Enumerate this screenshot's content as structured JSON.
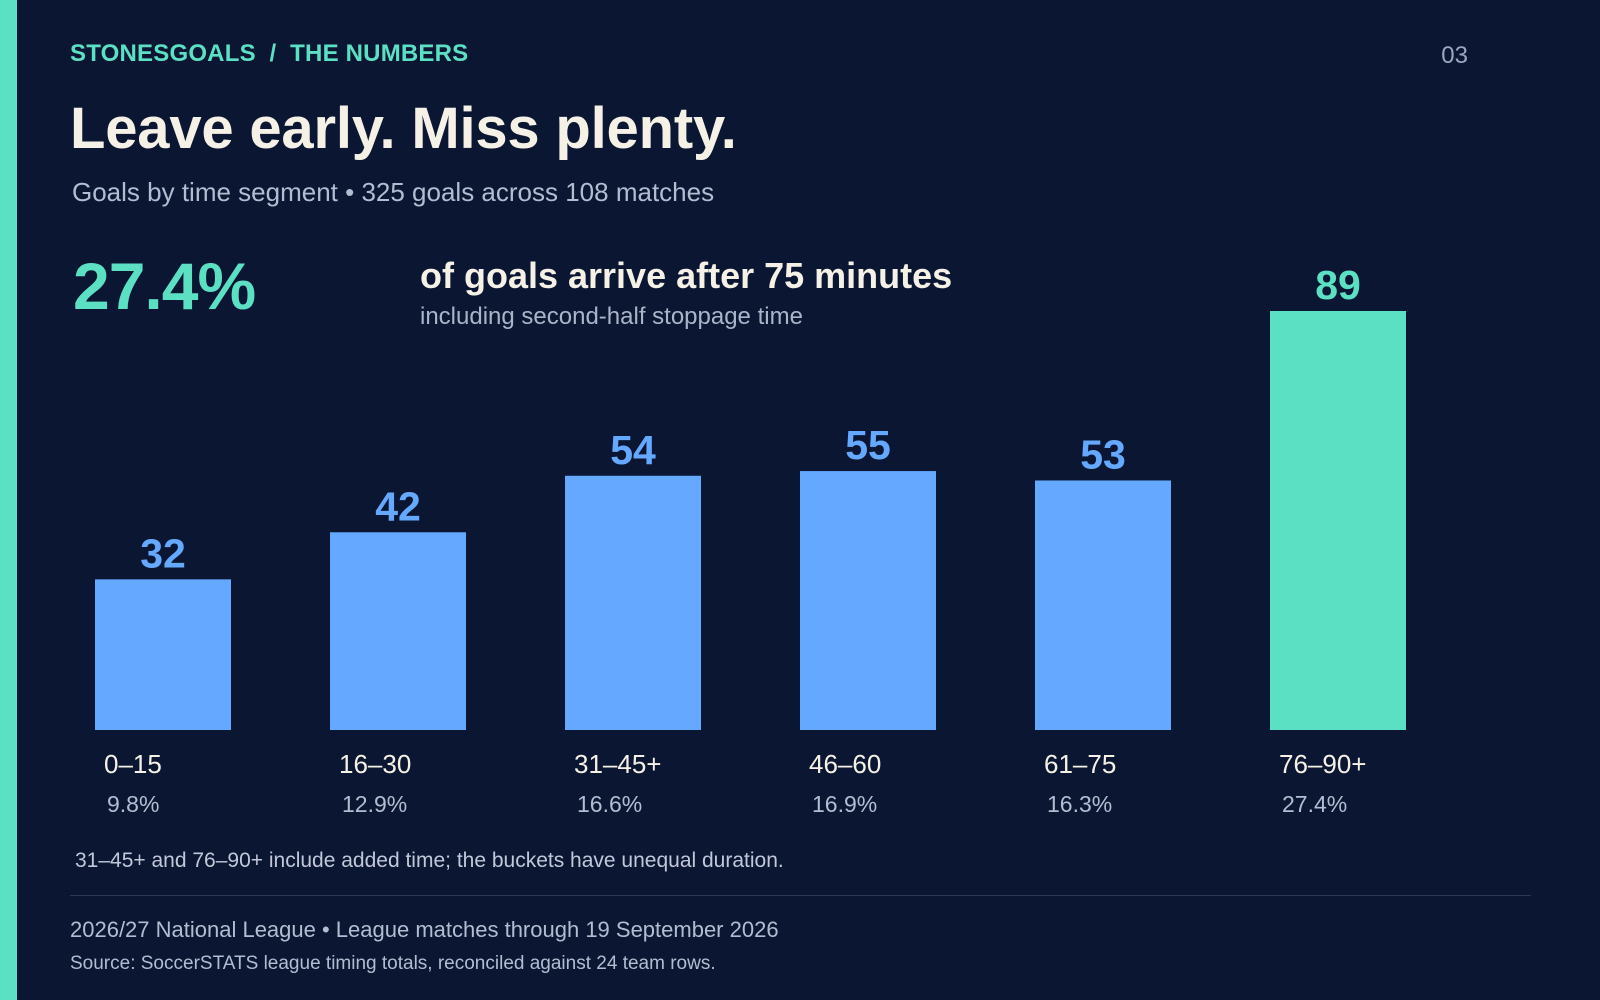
{
  "header": {
    "brand": "STONESGOALS",
    "separator": "/",
    "section": "THE NUMBERS",
    "page_number": "03"
  },
  "title": "Leave early. Miss plenty.",
  "subtitle": "Goals by time segment • 325 goals across 108 matches",
  "callout": {
    "stat": "27.4%",
    "headline": "of goals arrive after 75 minutes",
    "subline": "including second-half stoppage time"
  },
  "colors": {
    "background": "#0b1732",
    "accent": "#5ce0c4",
    "bar": "#64a8ff",
    "text": "#f6f1e6",
    "muted": "#b3bdd2"
  },
  "chart_data": {
    "type": "bar",
    "categories": [
      "0–15",
      "16–30",
      "31–45+",
      "46–60",
      "61–75",
      "76–90+"
    ],
    "values": [
      32,
      42,
      54,
      55,
      53,
      89
    ],
    "percentages": [
      "9.8%",
      "12.9%",
      "16.6%",
      "16.9%",
      "16.3%",
      "27.4%"
    ],
    "highlight_index": 5,
    "ylim": [
      0,
      89
    ],
    "grid": false,
    "legend": "none",
    "xlabel": "",
    "ylabel": ""
  },
  "footnote": "31–45+ and 76–90+ include added time; the buckets have unequal duration.",
  "footer": {
    "meta": "2026/27 National League • League matches through 19 September 2026",
    "source": "Source: SoccerSTATS league timing totals, reconciled against 24 team rows."
  }
}
